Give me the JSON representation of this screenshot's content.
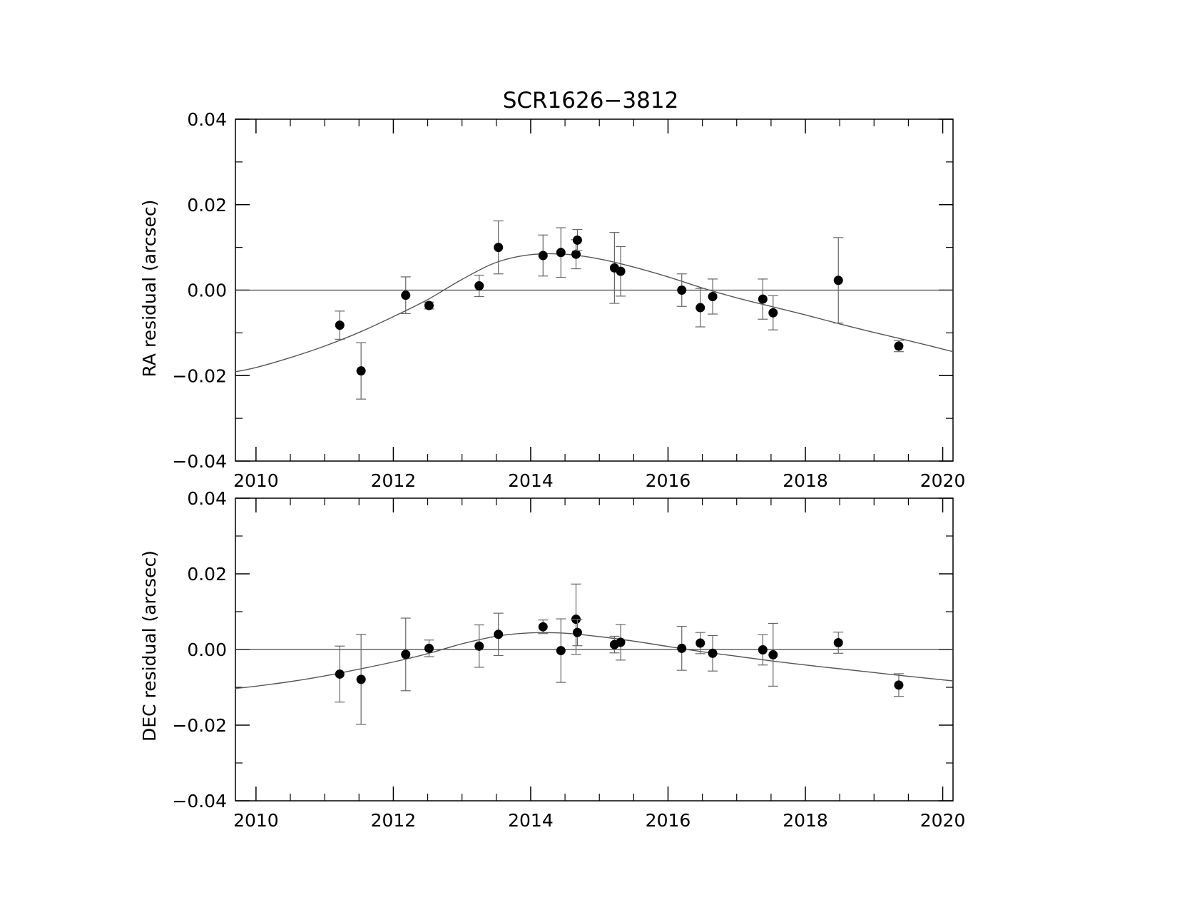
{
  "chart_data": [
    {
      "type": "scatter",
      "title": "SCR1626−3812",
      "xlabel": "",
      "ylabel": "RA residual (arcsec)",
      "xlim": [
        2009.7,
        2020.15
      ],
      "ylim": [
        -0.04,
        0.04
      ],
      "x_ticks": [
        2010,
        2012,
        2014,
        2016,
        2018,
        2020
      ],
      "x_tick_labels": [
        "2010",
        "2012",
        "2014",
        "2016",
        "2018",
        "2020"
      ],
      "y_ticks": [
        -0.04,
        -0.02,
        0.0,
        0.02,
        0.04
      ],
      "y_tick_labels": [
        "−0.04",
        "−0.02",
        "0.00",
        "0.02",
        "0.04"
      ],
      "zero_line": true,
      "series": [
        {
          "points": [
            {
              "x": 2011.22,
              "y": -0.0082,
              "err": 0.0033
            },
            {
              "x": 2011.53,
              "y": -0.0189,
              "err": 0.0066
            },
            {
              "x": 2012.18,
              "y": -0.0012,
              "err": 0.0043
            },
            {
              "x": 2012.52,
              "y": -0.0036,
              "err": 0.0008
            },
            {
              "x": 2013.25,
              "y": 0.001,
              "err": 0.0025
            },
            {
              "x": 2013.53,
              "y": 0.01,
              "err": 0.0062
            },
            {
              "x": 2014.18,
              "y": 0.0081,
              "err": 0.0048
            },
            {
              "x": 2014.44,
              "y": 0.0088,
              "err": 0.0058
            },
            {
              "x": 2014.66,
              "y": 0.0084,
              "err": 0.0034
            },
            {
              "x": 2014.68,
              "y": 0.0117,
              "err": 0.0025
            },
            {
              "x": 2015.22,
              "y": 0.0052,
              "err": 0.0083
            },
            {
              "x": 2015.31,
              "y": 0.0044,
              "err": 0.0058
            },
            {
              "x": 2016.2,
              "y": 0.0,
              "err": 0.0038
            },
            {
              "x": 2016.47,
              "y": -0.0041,
              "err": 0.0045
            },
            {
              "x": 2016.65,
              "y": -0.0015,
              "err": 0.0041
            },
            {
              "x": 2017.38,
              "y": -0.0021,
              "err": 0.0047
            },
            {
              "x": 2017.53,
              "y": -0.0053,
              "err": 0.004
            },
            {
              "x": 2018.48,
              "y": 0.0023,
              "err": 0.01
            },
            {
              "x": 2019.36,
              "y": -0.0131,
              "err": 0.0013
            }
          ]
        }
      ],
      "model_curve": {
        "x": [
          2009.7,
          2010.0,
          2010.5,
          2011.0,
          2011.5,
          2012.0,
          2012.5,
          2013.0,
          2013.5,
          2014.0,
          2014.5,
          2015.0,
          2015.5,
          2016.0,
          2016.5,
          2017.0,
          2017.5,
          2018.0,
          2018.5,
          2019.0,
          2019.5,
          2020.15
        ],
        "y": [
          -0.0191,
          -0.0181,
          -0.0158,
          -0.0131,
          -0.0099,
          -0.0062,
          -0.0022,
          0.0025,
          0.0065,
          0.0083,
          0.0084,
          0.0073,
          0.0054,
          0.0031,
          0.0005,
          -0.0018,
          -0.0038,
          -0.0058,
          -0.0079,
          -0.0099,
          -0.0118,
          -0.0144
        ]
      }
    },
    {
      "type": "scatter",
      "title": "",
      "xlabel": "",
      "ylabel": "DEC residual (arcsec)",
      "xlim": [
        2009.7,
        2020.15
      ],
      "ylim": [
        -0.04,
        0.04
      ],
      "x_ticks": [
        2010,
        2012,
        2014,
        2016,
        2018,
        2020
      ],
      "x_tick_labels": [
        "2010",
        "2012",
        "2014",
        "2016",
        "2018",
        "2020"
      ],
      "y_ticks": [
        -0.04,
        -0.02,
        0.0,
        0.02,
        0.04
      ],
      "y_tick_labels": [
        "−0.04",
        "−0.02",
        "0.00",
        "0.02",
        "0.04"
      ],
      "zero_line": true,
      "series": [
        {
          "points": [
            {
              "x": 2011.22,
              "y": -0.0065,
              "err": 0.0074
            },
            {
              "x": 2011.53,
              "y": -0.0079,
              "err": 0.0119
            },
            {
              "x": 2012.18,
              "y": -0.0013,
              "err": 0.0096
            },
            {
              "x": 2012.52,
              "y": 0.0003,
              "err": 0.0022
            },
            {
              "x": 2013.25,
              "y": 0.0009,
              "err": 0.0056
            },
            {
              "x": 2013.53,
              "y": 0.004,
              "err": 0.0056
            },
            {
              "x": 2014.18,
              "y": 0.006,
              "err": 0.0018
            },
            {
              "x": 2014.44,
              "y": -0.0003,
              "err": 0.0084
            },
            {
              "x": 2014.66,
              "y": 0.008,
              "err": 0.0093
            },
            {
              "x": 2014.68,
              "y": 0.0045,
              "err": 0.0035
            },
            {
              "x": 2015.22,
              "y": 0.0013,
              "err": 0.0022
            },
            {
              "x": 2015.31,
              "y": 0.0019,
              "err": 0.0047
            },
            {
              "x": 2016.2,
              "y": 0.0003,
              "err": 0.0058
            },
            {
              "x": 2016.47,
              "y": 0.0017,
              "err": 0.0028
            },
            {
              "x": 2016.65,
              "y": -0.001,
              "err": 0.0047
            },
            {
              "x": 2017.38,
              "y": -0.0001,
              "err": 0.004
            },
            {
              "x": 2017.53,
              "y": -0.0014,
              "err": 0.0083
            },
            {
              "x": 2018.48,
              "y": 0.0018,
              "err": 0.0028
            },
            {
              "x": 2019.36,
              "y": -0.0094,
              "err": 0.003
            }
          ]
        }
      ],
      "model_curve": {
        "x": [
          2009.7,
          2010.0,
          2010.5,
          2011.0,
          2011.5,
          2012.0,
          2012.5,
          2013.0,
          2013.5,
          2014.0,
          2014.5,
          2015.0,
          2015.5,
          2016.0,
          2016.5,
          2017.0,
          2017.5,
          2018.0,
          2018.5,
          2019.0,
          2019.5,
          2020.15
        ],
        "y": [
          -0.0103,
          -0.0097,
          -0.0085,
          -0.007,
          -0.0052,
          -0.0033,
          -0.0011,
          0.0015,
          0.0035,
          0.0044,
          0.0043,
          0.0034,
          0.0022,
          0.0008,
          -0.0006,
          -0.0018,
          -0.003,
          -0.0041,
          -0.0051,
          -0.0061,
          -0.0071,
          -0.0083
        ]
      }
    }
  ]
}
